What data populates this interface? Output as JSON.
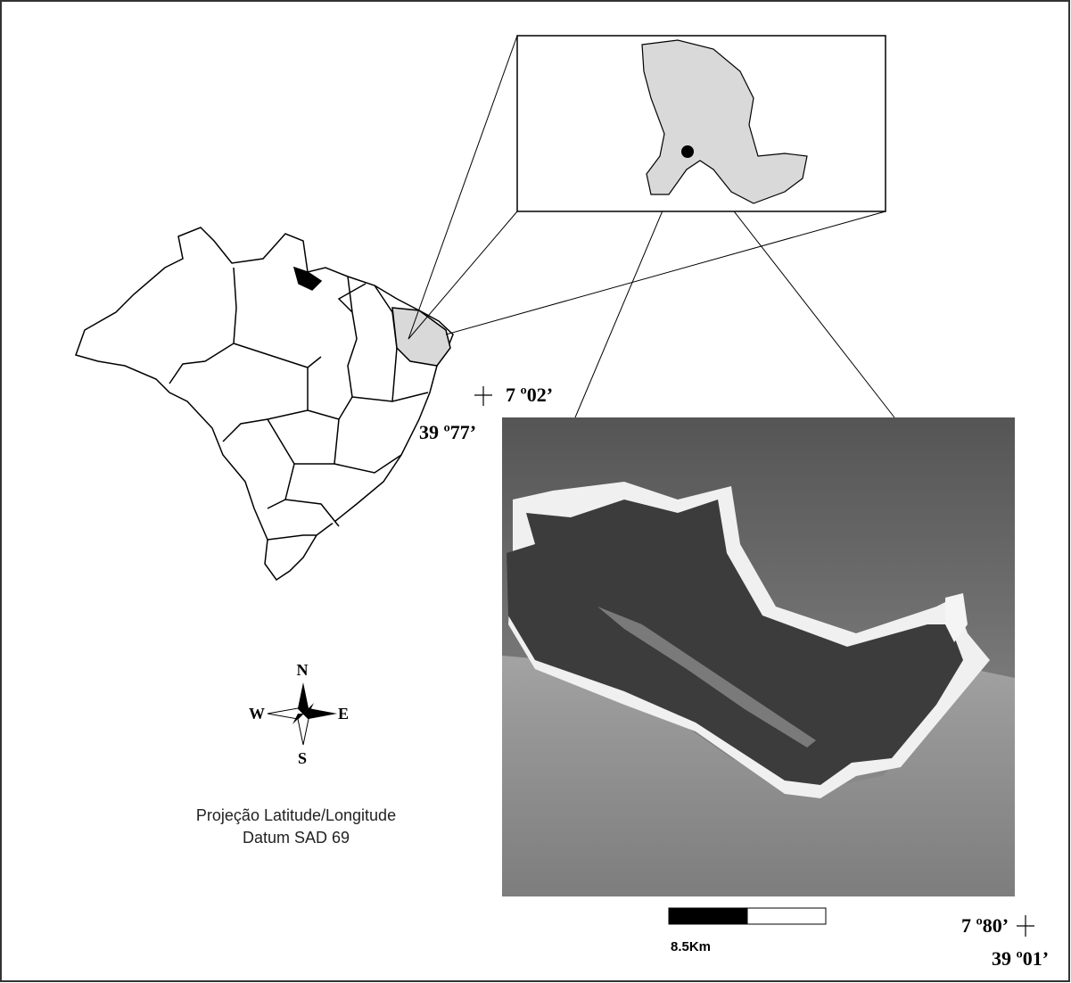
{
  "compass": {
    "north": "N",
    "south": "S",
    "east": "E",
    "west": "W"
  },
  "projection": {
    "line1": "Projeção Latitude/Longitude",
    "line2": "Datum SAD 69"
  },
  "coordinates": {
    "top_left_lat": "7 º02’",
    "top_left_lon": "39 º77’",
    "bottom_right_lat": "7 º80’",
    "bottom_right_lon": "39 º01’"
  },
  "scale_bar": {
    "label": "8.5Km"
  }
}
